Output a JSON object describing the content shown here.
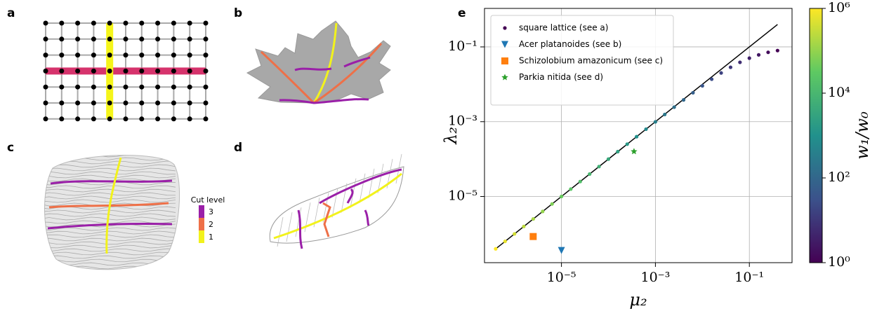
{
  "panels": {
    "a": "a",
    "b": "b",
    "c": "c",
    "d": "d",
    "e": "e"
  },
  "cut_legend": {
    "title": "Cut level",
    "levels": [
      3,
      2,
      1
    ],
    "colors": [
      "#9a1fa8",
      "#ee7048",
      "#f2f21c"
    ]
  },
  "chart_data": {
    "type": "scatter",
    "xlabel": "μ₂",
    "ylabel": "λ₂",
    "log_x": true,
    "log_y": true,
    "grid": true,
    "legend": "upper left",
    "xlim": [
      2.3e-07,
      0.81
    ],
    "ylim": [
      1.7e-07,
      1.07
    ],
    "xticks": [
      {
        "value": 1e-05,
        "label": "10⁻⁵"
      },
      {
        "value": 0.001,
        "label": "10⁻³"
      },
      {
        "value": 0.1,
        "label": "10⁻¹"
      }
    ],
    "yticks": [
      {
        "value": 1e-05,
        "label": "10⁻⁵"
      },
      {
        "value": 0.001,
        "label": "10⁻³"
      },
      {
        "value": 0.1,
        "label": "10⁻¹"
      }
    ],
    "series": [
      {
        "name": "square lattice (see a)",
        "marker": "circle",
        "x": [
          3.98e-07,
          6.31e-07,
          1e-06,
          1.58e-06,
          2.51e-06,
          3.98e-06,
          6.31e-06,
          1e-05,
          1.58e-05,
          2.51e-05,
          3.98e-05,
          6.31e-05,
          0.0001,
          0.000158,
          0.000251,
          0.000398,
          0.000631,
          0.001,
          0.00158,
          0.00251,
          0.00398,
          0.00631,
          0.01,
          0.0158,
          0.0251,
          0.0398,
          0.0631,
          0.1,
          0.158,
          0.251,
          0.398
        ],
        "values": [
          3.98e-07,
          6.31e-07,
          1e-06,
          1.58e-06,
          2.51e-06,
          3.98e-06,
          6.31e-06,
          1e-05,
          1.58e-05,
          2.51e-05,
          3.98e-05,
          6.31e-05,
          0.0001,
          0.000158,
          0.000251,
          0.000398,
          0.000631,
          0.00099,
          0.00156,
          0.00245,
          0.00383,
          0.00594,
          0.0091,
          0.0137,
          0.0201,
          0.0285,
          0.0387,
          0.05,
          0.0612,
          0.0716,
          0.0799
        ],
        "color_values": [
          1000000,
          631000,
          398000,
          251000,
          158000,
          100000,
          63100,
          39800,
          25100,
          15800,
          10000,
          6310,
          3980,
          2510,
          1580,
          1000,
          631,
          398,
          251,
          158,
          100,
          63.1,
          39.8,
          25.1,
          15.8,
          10,
          6.31,
          3.98,
          2.51,
          1.58,
          1
        ]
      },
      {
        "name": "Acer platanoides (see b)",
        "marker": "triangle-down",
        "color": "#1f77b4",
        "x": [
          1e-05
        ],
        "values": [
          3.6e-07
        ]
      },
      {
        "name": "Schizolobium amazonicum (see c)",
        "marker": "square",
        "color": "#ff7f0e",
        "x": [
          2.5e-06
        ],
        "values": [
          8.5e-07
        ]
      },
      {
        "name": "Parkia nitida (see d)",
        "marker": "star",
        "color": "#2ca02c",
        "x": [
          0.00035
        ],
        "values": [
          0.00016
        ]
      }
    ],
    "reference_line": {
      "color": "#000000",
      "x": [
        3.98e-07,
        0.398
      ],
      "values": [
        3.98e-07,
        0.398
      ]
    },
    "colorbar": {
      "label": "w₁/w₀",
      "colormap": "viridis",
      "lim": [
        1,
        1000000
      ],
      "ticks": [
        {
          "value": 1,
          "label": "10⁰"
        },
        {
          "value": 100,
          "label": "10²"
        },
        {
          "value": 10000,
          "label": "10⁴"
        },
        {
          "value": 1000000,
          "label": "10⁶"
        }
      ]
    }
  }
}
